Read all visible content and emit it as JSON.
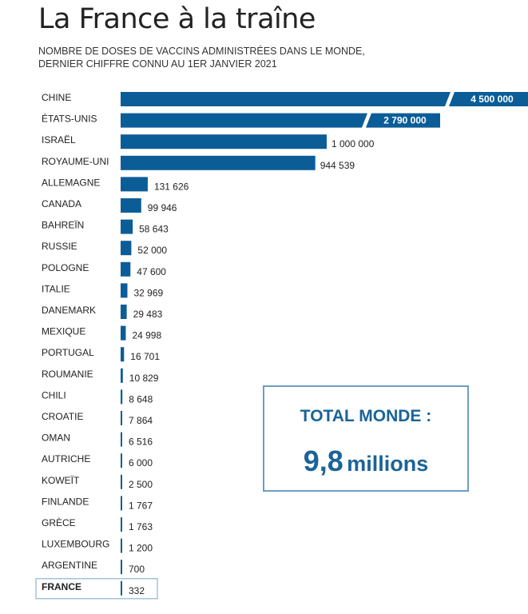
{
  "title": "La France à la traîne",
  "subtitle": {
    "line1": "NOMBRE DE DOSES DE VACCINS ADMINISTRÉES DANS LE MONDE,",
    "line2": "DERNIER CHIFFRE CONNU AU 1ER JANVIER 2021"
  },
  "total": {
    "label": "TOTAL MONDE :",
    "value": "9,8",
    "unit": "millions"
  },
  "colors": {
    "bar": "#0b5d98",
    "label_on_bar": "#ffffff",
    "highlight_border": "#8fb3cf",
    "text": "#222222"
  },
  "chart_data": {
    "type": "bar",
    "orientation": "horizontal",
    "broken_bars": [
      "CHINE",
      "ÉTATS-UNIS"
    ],
    "highlight": "FRANCE",
    "categories": [
      "CHINE",
      "ÉTATS-UNIS",
      "ISRAËL",
      "ROYAUME-UNI",
      "ALLEMAGNE",
      "CANADA",
      "BAHREÏN",
      "RUSSIE",
      "POLOGNE",
      "ITALIE",
      "DANEMARK",
      "MEXIQUE",
      "PORTUGAL",
      "ROUMANIE",
      "CHILI",
      "CROATIE",
      "OMAN",
      "AUTRICHE",
      "KOWEÏT",
      "FINLANDE",
      "GRÈCE",
      "LUXEMBOURG",
      "ARGENTINE",
      "FRANCE"
    ],
    "values": [
      4500000,
      2790000,
      1000000,
      944539,
      131626,
      99946,
      58643,
      52000,
      47600,
      32969,
      29483,
      24998,
      16701,
      10829,
      8648,
      7864,
      6516,
      6000,
      2500,
      1767,
      1763,
      1200,
      700,
      332
    ],
    "value_labels": [
      "4 500 000",
      "2 790 000",
      "1 000 000",
      "944 539",
      "131 626",
      "99 946",
      "58 643",
      "52 000",
      "47 600",
      "32 969",
      "29 483",
      "24 998",
      "16 701",
      "10 829",
      "8 648",
      "7 864",
      "6 516",
      "6 000",
      "2 500",
      "1 767",
      "1 763",
      "1 200",
      "700",
      "332"
    ]
  }
}
